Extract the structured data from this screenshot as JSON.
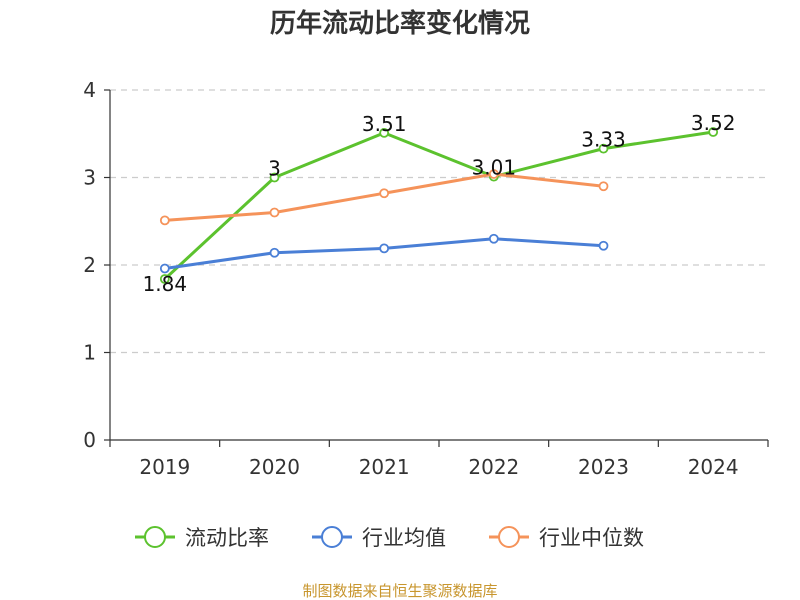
{
  "page": {
    "source": "制图数据来自恒生聚源数据库",
    "source_color": "#c8962e"
  },
  "chart_data": {
    "type": "line",
    "title": "历年流动比率变化情况",
    "xlabel": "",
    "ylabel": "",
    "categories": [
      "2019",
      "2020",
      "2021",
      "2022",
      "2023",
      "2024"
    ],
    "ylim": [
      0,
      4
    ],
    "yticks": [
      0,
      1,
      2,
      3,
      4
    ],
    "grid": true,
    "legend_position": "bottom",
    "series": [
      {
        "name": "流动比率",
        "color": "#5cc22e",
        "values": [
          1.84,
          3,
          3.51,
          3.01,
          3.33,
          3.52
        ],
        "labels": [
          "1.84",
          "3",
          "3.51",
          "3.01",
          "3.33",
          "3.52"
        ]
      },
      {
        "name": "行业均值",
        "color": "#4a7fd6",
        "values": [
          1.96,
          2.14,
          2.19,
          2.3,
          2.22,
          null
        ],
        "labels": null
      },
      {
        "name": "行业中位数",
        "color": "#f5935a",
        "values": [
          2.51,
          2.6,
          2.82,
          3.04,
          2.9,
          null
        ],
        "labels": null
      }
    ]
  }
}
